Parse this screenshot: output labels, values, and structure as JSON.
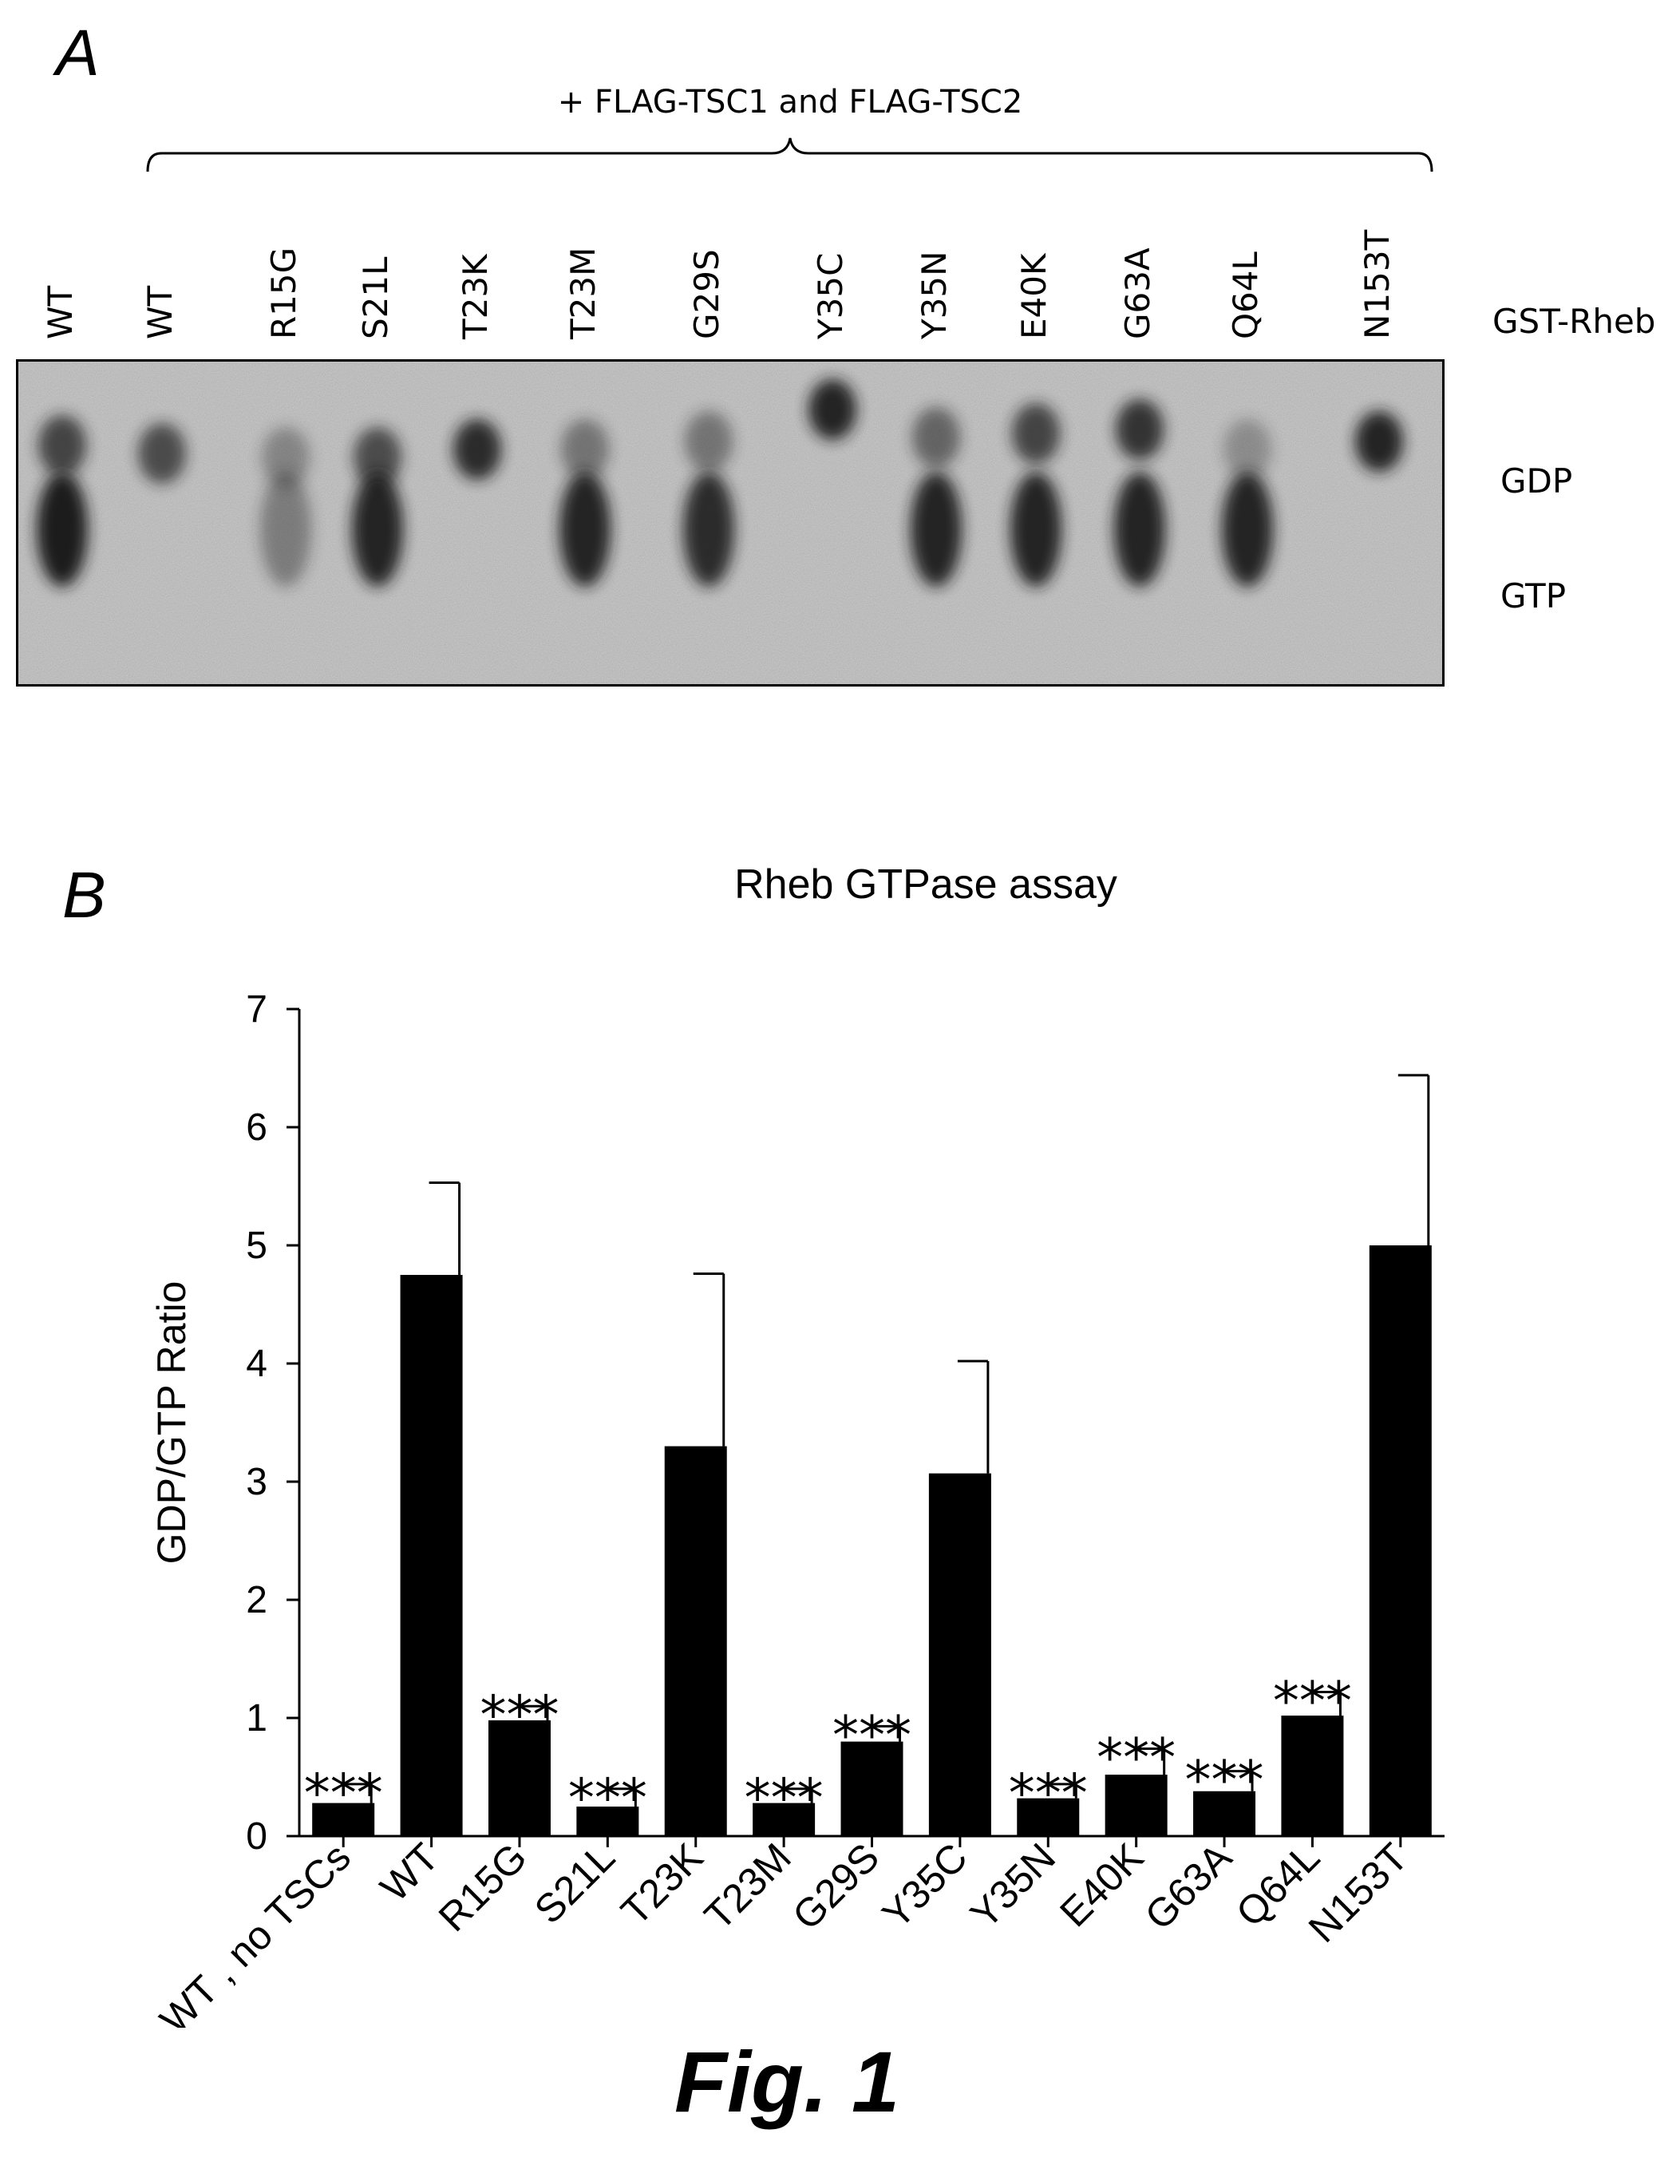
{
  "panel_a": {
    "letter": "A",
    "bracket_label": "+ FLAG-TSC1 and FLAG-TSC2",
    "lanes": [
      "WT",
      "WT",
      "R15G",
      "S21L",
      "T23K",
      "T23M",
      "G29S",
      "Y35C",
      "Y35N",
      "E40K",
      "G63A",
      "Q64L",
      "N153T"
    ],
    "row_label": "GST-Rheb",
    "band_labels": [
      "GDP",
      "GTP"
    ]
  },
  "panel_b": {
    "letter": "B"
  },
  "figure_caption": "Fig. 1",
  "colors": {
    "bar": "#000000",
    "gel_background": "#bdbdbd",
    "band": "#1a1a1a"
  },
  "chart_data": {
    "type": "bar",
    "title": "Rheb GTPase assay",
    "xlabel": "",
    "ylabel": "GDP/GTP Ratio",
    "ylim": [
      0,
      7
    ],
    "yticks": [
      0,
      1,
      2,
      3,
      4,
      5,
      6,
      7
    ],
    "grid": false,
    "categories": [
      "WT , no TSCs",
      "WT",
      "R15G",
      "S21L",
      "T23K",
      "T23M",
      "G29S",
      "Y35C",
      "Y35N",
      "E40K",
      "G63A",
      "Q64L",
      "N153T"
    ],
    "values": [
      0.28,
      4.75,
      0.98,
      0.25,
      3.3,
      0.28,
      0.8,
      3.07,
      0.32,
      0.52,
      0.38,
      1.02,
      5.0
    ],
    "errors": [
      0.16,
      0.78,
      0.12,
      0.15,
      1.46,
      0.12,
      0.13,
      0.95,
      0.12,
      0.22,
      0.17,
      0.2,
      1.44
    ],
    "annotations": [
      "***",
      "",
      "***",
      "***",
      "",
      "***",
      "***",
      "",
      "***",
      "***",
      "***",
      "***",
      ""
    ]
  }
}
